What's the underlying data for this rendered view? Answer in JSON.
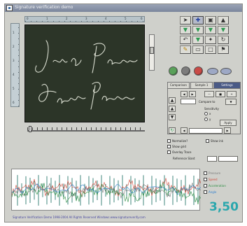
{
  "window": {
    "title": "Signature verification demo"
  },
  "ruler": {
    "top_numbers": [
      "0",
      "1",
      "2",
      "3",
      "4",
      "5",
      "6"
    ],
    "left_numbers": [
      "1",
      "2",
      "3",
      "4",
      "5",
      "6"
    ]
  },
  "tabs": [
    {
      "label": "Comparison"
    },
    {
      "label": "Sample 1"
    },
    {
      "label": "Settings"
    }
  ],
  "panel": {
    "compare_label": "Compare to",
    "sensitivity_label": "Sensitivity",
    "option_a": "x",
    "option_b": "y",
    "apply_button": "Apply",
    "field_value": ""
  },
  "checkboxes": [
    {
      "label": "Normalize?",
      "checked": false
    },
    {
      "label": "Show grid",
      "checked": false
    },
    {
      "label": "Show ink",
      "checked": false
    },
    {
      "label": "Overlay Trace",
      "checked": false
    }
  ],
  "reference": {
    "label": "Reference Slant"
  },
  "graph_legend": [
    {
      "label": "Pressure",
      "color": "#7a7a7a"
    },
    {
      "label": "Speed",
      "color": "#d04b3c"
    },
    {
      "label": "Acceleration",
      "color": "#2f8f44"
    },
    {
      "label": "Angle",
      "color": "#2f7fd0"
    }
  ],
  "score": "3,50",
  "status": "Signature Verification Demo  1998-2004 All Rights Reserved  Windows  www.signatureverify.com"
}
